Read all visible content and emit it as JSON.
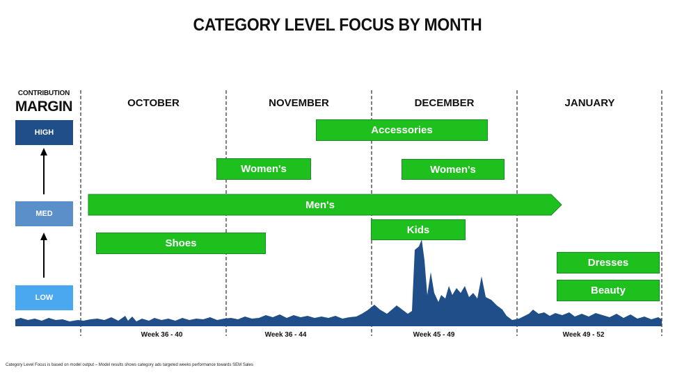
{
  "title": "CATEGORY LEVEL FOCUS BY MONTH",
  "axis": {
    "label_top": "CONTRIBUTION",
    "label_bottom": "MARGIN",
    "levels": [
      {
        "label": "HIGH",
        "color": "#1f4e89"
      },
      {
        "label": "MED",
        "color": "#5b8fc9"
      },
      {
        "label": "LOW",
        "color": "#4aa8f0"
      }
    ]
  },
  "months": [
    "OCTOBER",
    "NOVEMBER",
    "DECEMBER",
    "JANUARY"
  ],
  "weeks": [
    "Week 36 - 40",
    "Week 36 - 44",
    "Week 45 - 49",
    "Week 49 - 52"
  ],
  "bars": [
    {
      "label": "Accessories"
    },
    {
      "label": "Women's"
    },
    {
      "label": "Women's"
    },
    {
      "label": "Men's"
    },
    {
      "label": "Kids"
    },
    {
      "label": "Shoes"
    },
    {
      "label": "Dresses"
    },
    {
      "label": "Beauty"
    }
  ],
  "colors": {
    "bar_fill": "#1ec01e",
    "sales_area": "#1f4e89"
  },
  "footnote": "Category Level Focus is based on model output – Model results shows category ads targeted weeks performance towards SEM Sales"
}
